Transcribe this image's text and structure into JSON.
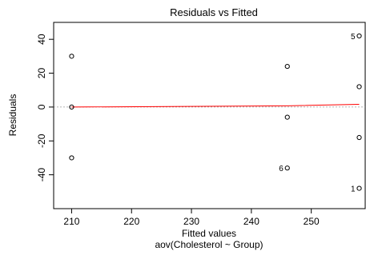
{
  "chart_data": {
    "type": "scatter",
    "title": "Residuals vs Fitted",
    "xlabel": "Fitted values",
    "subtitle": "aov(Cholesterol ~ Group)",
    "ylabel": "Residuals",
    "xlim": [
      207,
      259
    ],
    "ylim": [
      -60,
      50
    ],
    "xticks": [
      210,
      220,
      230,
      240,
      250
    ],
    "yticks": [
      -40,
      -20,
      0,
      20,
      40
    ],
    "grid": false,
    "points": [
      {
        "x": 210,
        "y": 30
      },
      {
        "x": 210,
        "y": 0
      },
      {
        "x": 210,
        "y": -30
      },
      {
        "x": 246,
        "y": 24
      },
      {
        "x": 246,
        "y": -6
      },
      {
        "x": 246,
        "y": -36,
        "label": "6"
      },
      {
        "x": 258,
        "y": 42,
        "label": "5"
      },
      {
        "x": 258,
        "y": 12
      },
      {
        "x": 258,
        "y": -18
      },
      {
        "x": 258,
        "y": -48,
        "label": "1"
      }
    ],
    "reference_line": {
      "y": 0,
      "color": "#999999"
    },
    "smooth_line": {
      "points": [
        [
          210,
          0
        ],
        [
          246,
          0.7
        ],
        [
          258,
          1.6
        ]
      ],
      "color": "#ff0000"
    }
  }
}
